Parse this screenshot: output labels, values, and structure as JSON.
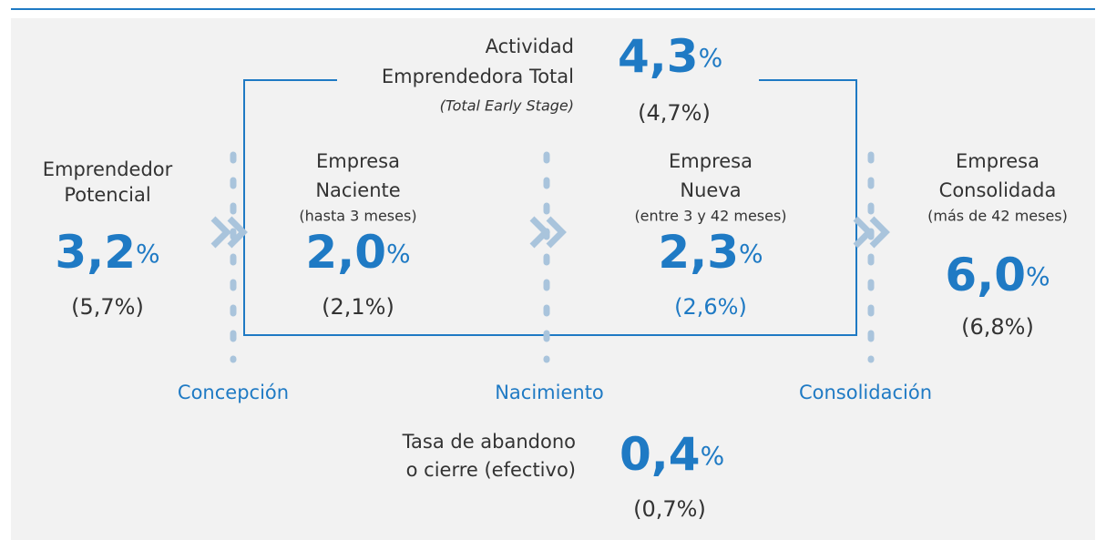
{
  "header": {
    "title_lines": [
      "Actividad",
      "Emprendedora Total"
    ],
    "subtitle": "(Total Early Stage)",
    "value": "4,3",
    "unit": "%",
    "previous": "(4,7%)"
  },
  "stages": [
    {
      "title_lines": [
        "Emprendedor",
        "Potencial"
      ],
      "value": "3,2",
      "unit": "%",
      "previous": "(5,7%)"
    },
    {
      "title_lines": [
        "Empresa",
        "Naciente"
      ],
      "note": "(hasta 3 meses)",
      "value": "2,0",
      "unit": "%",
      "previous": "(2,1%)"
    },
    {
      "title_lines": [
        "Empresa",
        "Nueva"
      ],
      "note": "(entre 3 y 42 meses)",
      "value": "2,3",
      "unit": "%",
      "previous": "(2,6%)"
    },
    {
      "title_lines": [
        "Empresa",
        "Consolidada"
      ],
      "note": "(más de 42 meses)",
      "value": "6,0",
      "unit": "%",
      "previous": "(6,8%)"
    }
  ],
  "phases": [
    "Concepción",
    "Nacimiento",
    "Consolidación"
  ],
  "abandonment": {
    "title_lines": [
      "Tasa de abandono",
      "o cierre (efectivo)"
    ],
    "value": "0,4",
    "unit": "%",
    "previous": "(0,7%)"
  }
}
